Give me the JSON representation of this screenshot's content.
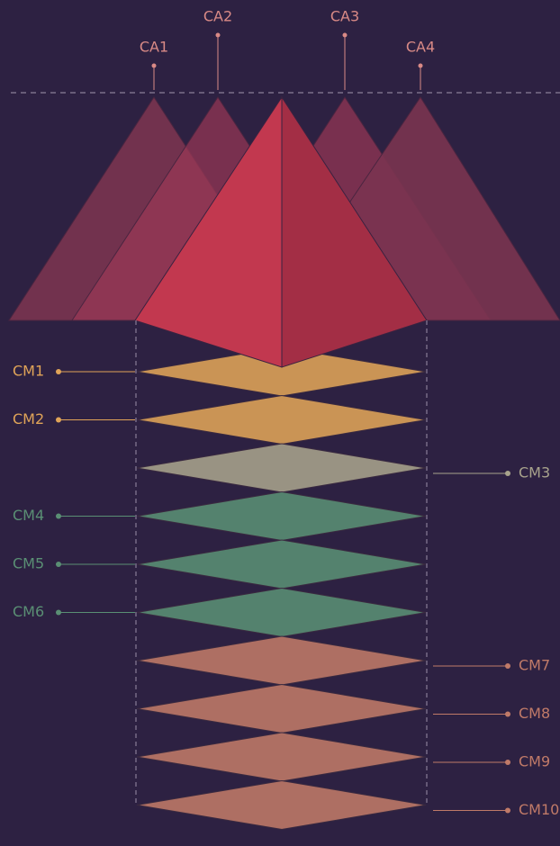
{
  "ca_labels": [
    "CA1",
    "CA2",
    "CA3",
    "CA4"
  ],
  "cm_labels": [
    "CM1",
    "CM2",
    "CM3",
    "CM4",
    "CM5",
    "CM6",
    "CM7",
    "CM8",
    "CM9",
    "CM10"
  ]
}
